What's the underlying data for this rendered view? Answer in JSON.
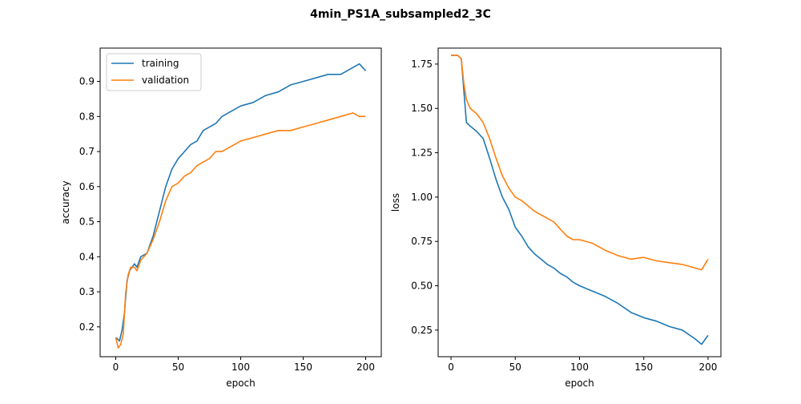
{
  "title": "4min_PS1A_subsampled2_3C",
  "colors": {
    "training": "#1f77b4",
    "validation": "#ff7f0e"
  },
  "chart_data": [
    {
      "type": "line",
      "xlabel": "epoch",
      "ylabel": "accuracy",
      "xlim": [
        -12.5,
        212.5
      ],
      "ylim": [
        0.115,
        0.995
      ],
      "xticks": [
        0,
        50,
        100,
        150,
        200
      ],
      "yticks": [
        0.2,
        0.3,
        0.4,
        0.5,
        0.6,
        0.7,
        0.8,
        0.9
      ],
      "ytick_labels": [
        "0.2",
        "0.3",
        "0.4",
        "0.5",
        "0.6",
        "0.7",
        "0.8",
        "0.9"
      ],
      "legend": "upper-left",
      "series": [
        {
          "name": "training",
          "x": [
            0,
            3,
            5,
            7,
            9,
            11,
            13,
            15,
            17,
            20,
            25,
            30,
            35,
            40,
            45,
            50,
            55,
            60,
            65,
            70,
            75,
            80,
            85,
            90,
            95,
            100,
            110,
            120,
            130,
            140,
            150,
            160,
            170,
            180,
            190,
            195,
            200
          ],
          "y": [
            0.17,
            0.16,
            0.19,
            0.24,
            0.33,
            0.36,
            0.37,
            0.38,
            0.37,
            0.4,
            0.41,
            0.46,
            0.53,
            0.6,
            0.65,
            0.68,
            0.7,
            0.72,
            0.73,
            0.76,
            0.77,
            0.78,
            0.8,
            0.81,
            0.82,
            0.83,
            0.84,
            0.86,
            0.87,
            0.89,
            0.9,
            0.91,
            0.92,
            0.92,
            0.94,
            0.95,
            0.93
          ]
        },
        {
          "name": "validation",
          "x": [
            0,
            2,
            4,
            6,
            8,
            10,
            12,
            15,
            17,
            20,
            25,
            30,
            35,
            40,
            45,
            50,
            55,
            60,
            65,
            70,
            75,
            80,
            85,
            90,
            95,
            100,
            110,
            120,
            130,
            140,
            150,
            160,
            170,
            180,
            190,
            195,
            200
          ],
          "y": [
            0.17,
            0.14,
            0.15,
            0.18,
            0.3,
            0.35,
            0.37,
            0.37,
            0.36,
            0.39,
            0.41,
            0.45,
            0.5,
            0.56,
            0.6,
            0.61,
            0.63,
            0.64,
            0.66,
            0.67,
            0.68,
            0.7,
            0.7,
            0.71,
            0.72,
            0.73,
            0.74,
            0.75,
            0.76,
            0.76,
            0.77,
            0.78,
            0.79,
            0.8,
            0.81,
            0.8,
            0.8
          ]
        }
      ]
    },
    {
      "type": "line",
      "xlabel": "epoch",
      "ylabel": "loss",
      "xlim": [
        -10,
        210
      ],
      "ylim": [
        0.1,
        1.84
      ],
      "xticks": [
        0,
        50,
        100,
        150,
        200
      ],
      "yticks": [
        0.25,
        0.5,
        0.75,
        1.0,
        1.25,
        1.5,
        1.75
      ],
      "ytick_labels": [
        "0.25",
        "0.50",
        "0.75",
        "1.00",
        "1.25",
        "1.50",
        "1.75"
      ],
      "series": [
        {
          "name": "training",
          "x": [
            0,
            5,
            8,
            10,
            12,
            15,
            20,
            25,
            30,
            35,
            40,
            45,
            50,
            55,
            60,
            65,
            70,
            75,
            80,
            85,
            90,
            95,
            100,
            110,
            120,
            130,
            140,
            150,
            160,
            170,
            180,
            190,
            195,
            200
          ],
          "y": [
            1.8,
            1.8,
            1.78,
            1.6,
            1.42,
            1.4,
            1.37,
            1.33,
            1.22,
            1.1,
            1.0,
            0.93,
            0.83,
            0.78,
            0.72,
            0.68,
            0.65,
            0.62,
            0.6,
            0.57,
            0.55,
            0.52,
            0.5,
            0.47,
            0.44,
            0.4,
            0.35,
            0.32,
            0.3,
            0.27,
            0.25,
            0.2,
            0.17,
            0.22
          ]
        },
        {
          "name": "validation",
          "x": [
            0,
            5,
            8,
            10,
            12,
            15,
            20,
            25,
            30,
            35,
            40,
            45,
            50,
            55,
            60,
            65,
            70,
            75,
            80,
            85,
            90,
            95,
            100,
            110,
            120,
            130,
            140,
            150,
            160,
            170,
            180,
            190,
            195,
            200
          ],
          "y": [
            1.8,
            1.8,
            1.78,
            1.64,
            1.55,
            1.5,
            1.47,
            1.42,
            1.33,
            1.22,
            1.12,
            1.05,
            1.0,
            0.98,
            0.95,
            0.92,
            0.9,
            0.88,
            0.86,
            0.82,
            0.78,
            0.76,
            0.76,
            0.74,
            0.7,
            0.67,
            0.65,
            0.66,
            0.64,
            0.63,
            0.62,
            0.6,
            0.59,
            0.65
          ]
        }
      ]
    }
  ]
}
